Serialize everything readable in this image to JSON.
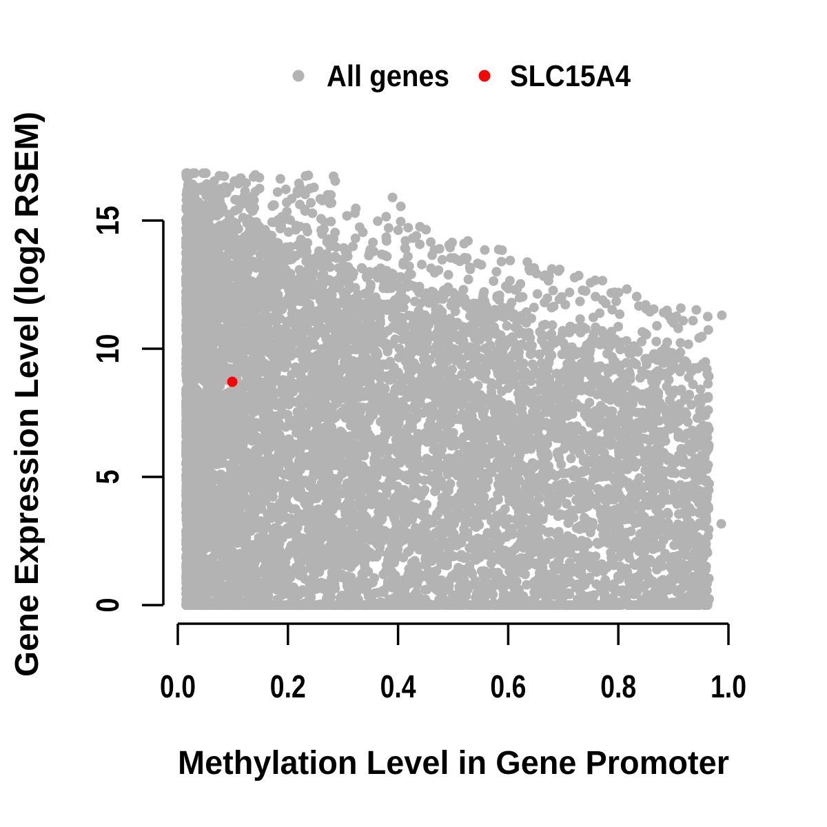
{
  "figure": {
    "background": "#ffffff",
    "axis_color": "#000000"
  },
  "legend": {
    "position": "top-center",
    "items": [
      {
        "label": "All genes",
        "color": "#b3b3b3",
        "marker": "filled-circle"
      },
      {
        "label": "SLC15A4",
        "color": "#ff0000",
        "marker": "filled-circle"
      }
    ]
  },
  "chart_data": {
    "type": "scatter",
    "title": "",
    "xlabel": "Methylation Level in Gene Promoter",
    "ylabel": "Gene Expression Level (log2 RSEM)",
    "xlim": [
      0,
      1
    ],
    "ylim": [
      0,
      15
    ],
    "data_x_range": [
      0.01,
      0.965
    ],
    "data_y_range": [
      0,
      16.85
    ],
    "grid": false,
    "x_tick_values": [
      0.0,
      0.2,
      0.4,
      0.6,
      0.8,
      1.0
    ],
    "x_tick_labels": [
      "0.0",
      "0.2",
      "0.4",
      "0.6",
      "0.8",
      "1.0"
    ],
    "y_tick_values": [
      0,
      5,
      10,
      15
    ],
    "y_tick_labels": [
      "0",
      "5",
      "10",
      "15"
    ],
    "series": [
      {
        "name": "All genes",
        "color": "#b3b3b3",
        "marker": "filled-circle",
        "role": "background-cloud",
        "cloud_model": {
          "description": "Approximately 9000 genes rendered as an overlapping gray cloud. Density is highest at low methylation; the upper envelope of expression decreases roughly linearly from ~15 at methylation 0 to ~8.5 at methylation 0.95, with a sparse fringe ~2.5 log2-units above the envelope, a dense row of zero-expression genes along y=0, and scattered high-expression points up to ~16.8 at methylation < 0.3.",
          "seed": 42,
          "n_main": 7600,
          "n_zero_row": 900,
          "n_upper_fringe": 540,
          "n_high_left": 170,
          "x_min": 0.015,
          "x_max": 0.965,
          "x_skew_exponent": 1.8,
          "envelope_intercept": 14.6,
          "envelope_slope": -6.2,
          "envelope_jitter": 1.6,
          "fringe_height": 2.6,
          "high_left_x_max": 0.3,
          "high_left_y_base": 12.5,
          "high_left_y_span": 4.35,
          "y_absolute_max": 16.85
        },
        "notable_outliers": [
          [
            0.22,
            16.45
          ],
          [
            0.24,
            16.25
          ],
          [
            0.39,
            15.9
          ],
          [
            0.405,
            15.55
          ],
          [
            0.52,
            14.1
          ],
          [
            0.988,
            11.3
          ],
          [
            0.987,
            3.17
          ]
        ]
      },
      {
        "name": "SLC15A4",
        "color": "#ff0000",
        "marker": "filled-circle",
        "points": [
          [
            0.099,
            8.71
          ]
        ]
      }
    ],
    "legend_position": "top"
  }
}
